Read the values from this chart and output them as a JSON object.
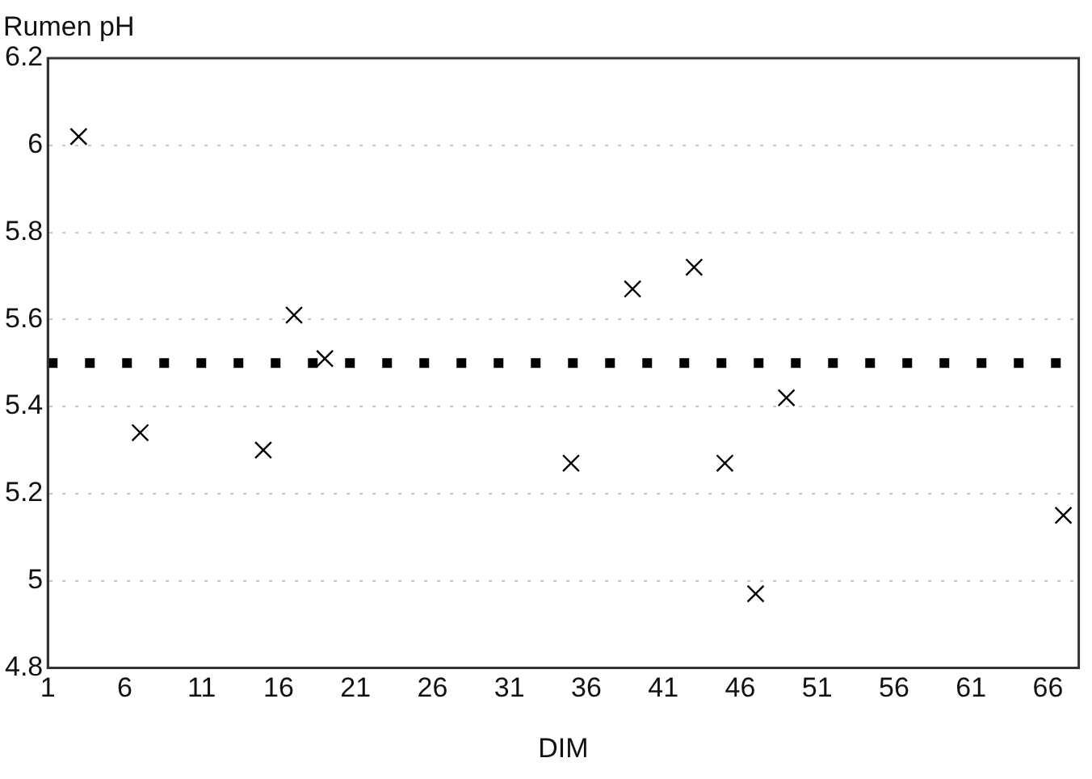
{
  "chart_data": {
    "type": "scatter",
    "xlabel": "DIM",
    "ylabel": "Rumen pH",
    "x": [
      3,
      7,
      15,
      17,
      19,
      35,
      39,
      43,
      45,
      47,
      49,
      67
    ],
    "series": [
      {
        "color": "#000000",
        "values": [
          6.02,
          5.34,
          5.3,
          5.61,
          5.51,
          5.27,
          5.67,
          5.72,
          5.27,
          4.97,
          5.42,
          5.15
        ]
      }
    ],
    "xlim": [
      1,
      68
    ],
    "xticks": [
      1,
      6,
      11,
      16,
      21,
      26,
      31,
      36,
      41,
      46,
      51,
      56,
      61,
      66
    ],
    "ylim": [
      4.8,
      6.2
    ],
    "yticks": [
      4.8,
      5,
      5.2,
      5.4,
      5.6,
      5.8,
      6,
      6.2
    ],
    "ref_lines": [
      {
        "axis": "y",
        "value": 5.5,
        "color": "#000000",
        "line_style": "dotted"
      }
    ],
    "grid": "y",
    "legend": false,
    "marker": "cross"
  }
}
